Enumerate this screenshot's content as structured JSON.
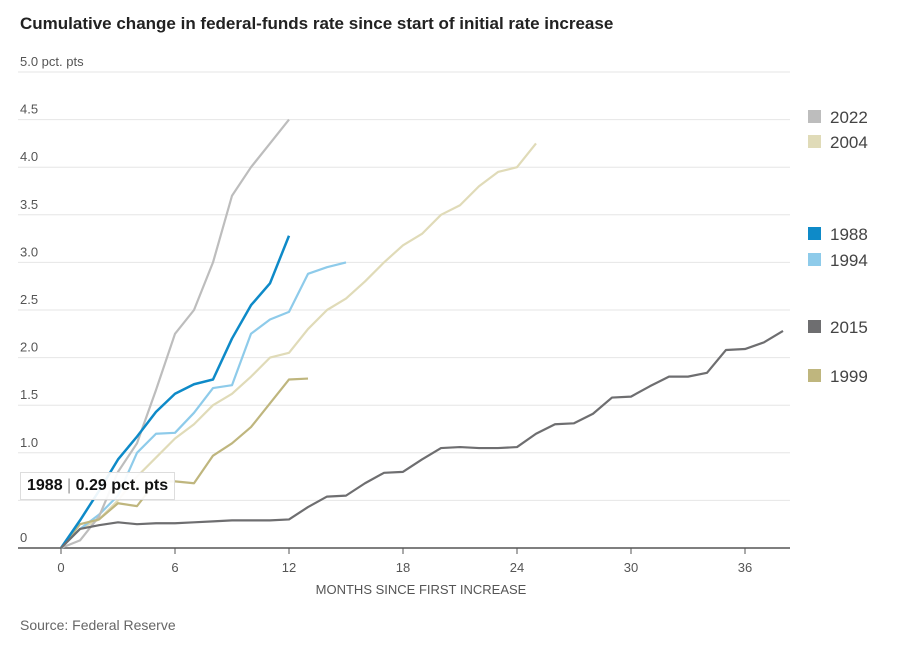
{
  "title": "Cumulative change in federal-funds rate since start of initial rate increase",
  "source": "Source: Federal Reserve",
  "tooltip": {
    "series": "1988",
    "value": "0.29 pct. pts"
  },
  "chart_data": {
    "type": "line",
    "title": "Cumulative change in federal-funds rate since start of initial rate increase",
    "xlabel": "MONTHS SINCE FIRST INCREASE",
    "ylabel": "",
    "xlim": [
      0,
      38.5
    ],
    "ylim": [
      0,
      5
    ],
    "xticks": [
      0,
      6,
      12,
      18,
      24,
      30,
      36
    ],
    "yticks": [
      {
        "v": 0,
        "label": "0"
      },
      {
        "v": 0.5,
        "label": ""
      },
      {
        "v": 1,
        "label": "1.0"
      },
      {
        "v": 1.5,
        "label": "1.5"
      },
      {
        "v": 2,
        "label": "2.0"
      },
      {
        "v": 2.5,
        "label": "2.5"
      },
      {
        "v": 3,
        "label": "3.0"
      },
      {
        "v": 3.5,
        "label": "3.5"
      },
      {
        "v": 4,
        "label": "4.0"
      },
      {
        "v": 4.5,
        "label": "4.5"
      },
      {
        "v": 5,
        "label": "5.0 pct. pts"
      }
    ],
    "grid": true,
    "legend_placement": "right",
    "series": [
      {
        "name": "2022",
        "color": "#bdbdbd",
        "values": [
          0,
          0.08,
          0.33,
          0.8,
          1.1,
          1.66,
          2.25,
          2.5,
          3.0,
          3.7,
          4.0,
          4.25,
          4.5
        ]
      },
      {
        "name": "2004",
        "color": "#e0dbb8",
        "values": [
          0,
          0.2,
          0.3,
          0.5,
          0.75,
          0.95,
          1.15,
          1.3,
          1.5,
          1.62,
          1.8,
          2.0,
          2.05,
          2.3,
          2.5,
          2.62,
          2.8,
          3.0,
          3.18,
          3.3,
          3.5,
          3.6,
          3.8,
          3.95,
          4.0,
          4.25
        ]
      },
      {
        "name": "1988",
        "color": "#0e8ac8",
        "values": [
          0,
          0.29,
          0.6,
          0.93,
          1.17,
          1.43,
          1.62,
          1.72,
          1.77,
          2.2,
          2.55,
          2.78,
          3.28
        ]
      },
      {
        "name": "1994",
        "color": "#8ecbea",
        "values": [
          0,
          0.2,
          0.35,
          0.55,
          1.0,
          1.2,
          1.21,
          1.42,
          1.68,
          1.71,
          2.25,
          2.4,
          2.48,
          2.88,
          2.95,
          3.0
        ]
      },
      {
        "name": "2015",
        "color": "#6e6e70",
        "values": [
          0,
          0.2,
          0.24,
          0.27,
          0.25,
          0.26,
          0.26,
          0.27,
          0.28,
          0.29,
          0.29,
          0.29,
          0.3,
          0.43,
          0.54,
          0.55,
          0.68,
          0.79,
          0.8,
          0.93,
          1.05,
          1.06,
          1.05,
          1.05,
          1.06,
          1.2,
          1.3,
          1.31,
          1.41,
          1.58,
          1.59,
          1.7,
          1.8,
          1.8,
          1.84,
          2.08,
          2.09,
          2.16,
          2.28
        ]
      },
      {
        "name": "1999",
        "color": "#bfb67e",
        "values": [
          0,
          0.25,
          0.3,
          0.47,
          0.44,
          0.7,
          0.7,
          0.68,
          0.97,
          1.1,
          1.27,
          1.52,
          1.77,
          1.78
        ]
      }
    ],
    "legend_order": [
      "2022",
      "2004",
      "1988",
      "1994",
      "2015",
      "1999"
    ]
  }
}
